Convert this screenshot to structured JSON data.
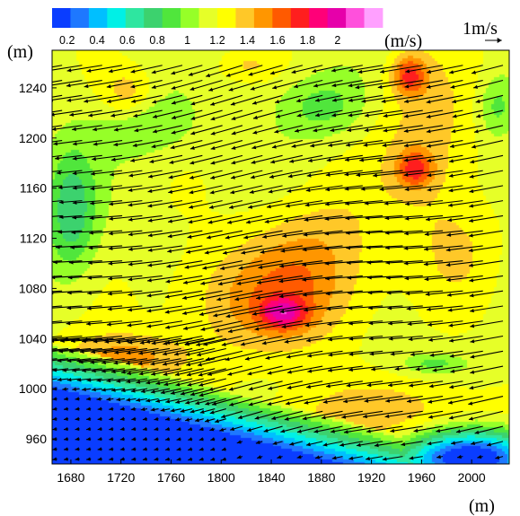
{
  "chart_data": {
    "type": "heatmap",
    "title": "",
    "subtitle": "",
    "xlabel": "(m)",
    "ylabel": "(m)",
    "xlim": [
      1665,
      2030
    ],
    "ylim": [
      940,
      1270
    ],
    "xticks": [
      1680,
      1720,
      1760,
      1800,
      1840,
      1880,
      1920,
      1960,
      2000
    ],
    "yticks": [
      960,
      1000,
      1040,
      1080,
      1120,
      1160,
      1200,
      1240
    ],
    "grid": false,
    "colorbar": {
      "position": "top",
      "unit": "(m/s)",
      "ticks": [
        0.2,
        0.4,
        0.6,
        0.8,
        1,
        1.2,
        1.4,
        1.6,
        1.8,
        2
      ],
      "tick_labels": [
        "0.2",
        "0.4",
        "0.6",
        "0.8",
        "1",
        "1.2",
        "1.4",
        "1.6",
        "1.8",
        "2"
      ],
      "range": [
        0.1,
        2.3
      ],
      "colors": [
        "#0a3dff",
        "#1e78ff",
        "#00bfff",
        "#00f0e6",
        "#2ee6a0",
        "#3cd26e",
        "#50e63c",
        "#96ff28",
        "#e6ff28",
        "#ffff00",
        "#ffc828",
        "#ff9600",
        "#ff5a00",
        "#ff1e1e",
        "#ff0078",
        "#e600aa",
        "#ff50dc",
        "#ffa0ff"
      ]
    },
    "reference_vector": {
      "label": "1m/s",
      "magnitude": 1
    },
    "background_speed": 1.15,
    "speed_features": [
      {
        "x": 1850,
        "y": 1060,
        "peak": 1.65,
        "rx": 18,
        "ry": 12
      },
      {
        "x": 1830,
        "y": 1070,
        "peak": 1.45,
        "rx": 70,
        "ry": 45
      },
      {
        "x": 1875,
        "y": 1105,
        "peak": 1.4,
        "rx": 50,
        "ry": 55
      },
      {
        "x": 1730,
        "y": 1025,
        "peak": 1.45,
        "rx": 45,
        "ry": 20
      },
      {
        "x": 1690,
        "y": 985,
        "peak": 1.45,
        "rx": 35,
        "ry": 40
      },
      {
        "x": 1950,
        "y": 1250,
        "peak": 1.65,
        "rx": 14,
        "ry": 16
      },
      {
        "x": 1955,
        "y": 1175,
        "peak": 1.6,
        "rx": 14,
        "ry": 14
      },
      {
        "x": 1965,
        "y": 1195,
        "peak": 1.4,
        "rx": 40,
        "ry": 70
      },
      {
        "x": 1935,
        "y": 980,
        "peak": 1.4,
        "rx": 100,
        "ry": 25
      },
      {
        "x": 1990,
        "y": 1110,
        "peak": 1.3,
        "rx": 30,
        "ry": 40
      },
      {
        "x": 1725,
        "y": 1235,
        "peak": 1.4,
        "rx": 20,
        "ry": 20
      },
      {
        "x": 1820,
        "y": 1258,
        "peak": 1.3,
        "rx": 25,
        "ry": 12
      },
      {
        "x": 1680,
        "y": 1140,
        "peak": 0.75,
        "rx": 20,
        "ry": 50
      },
      {
        "x": 1740,
        "y": 1210,
        "peak": 0.95,
        "rx": 40,
        "ry": 25
      },
      {
        "x": 1880,
        "y": 1225,
        "peak": 0.9,
        "rx": 35,
        "ry": 25
      },
      {
        "x": 2020,
        "y": 1225,
        "peak": 0.9,
        "rx": 15,
        "ry": 25
      },
      {
        "x": 1970,
        "y": 1020,
        "peak": 0.9,
        "rx": 25,
        "ry": 8
      },
      {
        "x": 2000,
        "y": 945,
        "peak": 0.05,
        "rx": 55,
        "ry": 22
      },
      {
        "x": 1890,
        "y": 940,
        "peak": 0.6,
        "rx": 45,
        "ry": 10
      }
    ],
    "wind_field": {
      "direction_deg": 190,
      "grid_dx": 16,
      "grid_dy": 12,
      "dense_region": {
        "x": [
          1665,
          1810
        ],
        "y": [
          940,
          1040
        ],
        "grid_dx": 9,
        "grid_dy": 8
      }
    }
  }
}
